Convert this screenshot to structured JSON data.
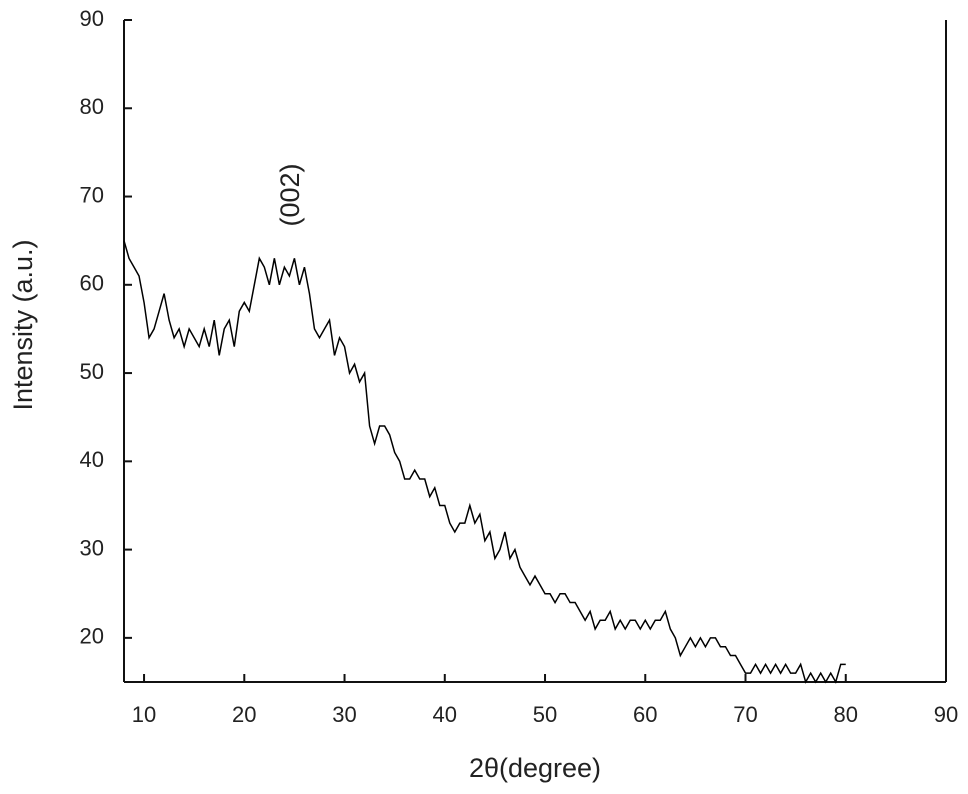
{
  "chart_data": {
    "type": "line",
    "xlabel": "2θ(degree)",
    "ylabel": "Intensity (a.u.)",
    "annotation": "(002)",
    "color": "#000000",
    "xlim": [
      8,
      90
    ],
    "ylim": [
      15,
      90
    ],
    "xticks": [
      10,
      20,
      30,
      40,
      50,
      60,
      70,
      80,
      90
    ],
    "yticks": [
      20,
      30,
      40,
      50,
      60,
      70,
      80,
      90
    ],
    "x": [
      8,
      8.5,
      9,
      9.5,
      10,
      10.5,
      11,
      11.5,
      12,
      12.5,
      13,
      13.5,
      14,
      14.5,
      15,
      15.5,
      16,
      16.5,
      17,
      17.5,
      18,
      18.5,
      19,
      19.5,
      20,
      20.5,
      21,
      21.5,
      22,
      22.5,
      23,
      23.5,
      24,
      24.5,
      25,
      25.5,
      26,
      26.5,
      27,
      27.5,
      28,
      28.5,
      29,
      29.5,
      30,
      30.5,
      31,
      31.5,
      32,
      32.5,
      33,
      33.5,
      34,
      34.5,
      35,
      35.5,
      36,
      36.5,
      37,
      37.5,
      38,
      38.5,
      39,
      39.5,
      40,
      40.5,
      41,
      41.5,
      42,
      42.5,
      43,
      43.5,
      44,
      44.5,
      45,
      45.5,
      46,
      46.5,
      47,
      47.5,
      48,
      48.5,
      49,
      49.5,
      50,
      50.5,
      51,
      51.5,
      52,
      52.5,
      53,
      53.5,
      54,
      54.5,
      55,
      55.5,
      56,
      56.5,
      57,
      57.5,
      58,
      58.5,
      59,
      59.5,
      60,
      60.5,
      61,
      61.5,
      62,
      62.5,
      63,
      63.5,
      64,
      64.5,
      65,
      65.5,
      66,
      66.5,
      67,
      67.5,
      68,
      68.5,
      69,
      69.5,
      70,
      70.5,
      71,
      71.5,
      72,
      72.5,
      73,
      73.5,
      74,
      74.5,
      75,
      75.5,
      76,
      76.5,
      77,
      77.5,
      78,
      78.5,
      79,
      79.5,
      80
    ],
    "values": [
      65,
      63,
      62,
      61,
      58,
      54,
      55,
      57,
      59,
      56,
      54,
      55,
      53,
      55,
      54,
      53,
      55,
      53,
      56,
      52,
      55,
      56,
      53,
      57,
      58,
      57,
      60,
      63,
      62,
      60,
      63,
      60,
      62,
      61,
      63,
      60,
      62,
      59,
      55,
      54,
      55,
      56,
      52,
      54,
      53,
      50,
      51,
      49,
      50,
      44,
      42,
      44,
      44,
      43,
      41,
      40,
      38,
      38,
      39,
      38,
      38,
      36,
      37,
      35,
      35,
      33,
      32,
      33,
      33,
      35,
      33,
      34,
      31,
      32,
      29,
      30,
      32,
      29,
      30,
      28,
      27,
      26,
      27,
      26,
      25,
      25,
      24,
      25,
      25,
      24,
      24,
      23,
      22,
      23,
      21,
      22,
      22,
      23,
      21,
      22,
      21,
      22,
      22,
      21,
      22,
      21,
      22,
      22,
      23,
      21,
      20,
      18,
      19,
      20,
      19,
      20,
      19,
      20,
      20,
      19,
      19,
      18,
      18,
      17,
      16,
      16,
      17,
      16,
      17,
      16,
      17,
      16,
      17,
      16,
      16,
      17,
      15,
      16,
      15,
      16,
      15,
      16,
      15,
      17,
      17
    ]
  }
}
